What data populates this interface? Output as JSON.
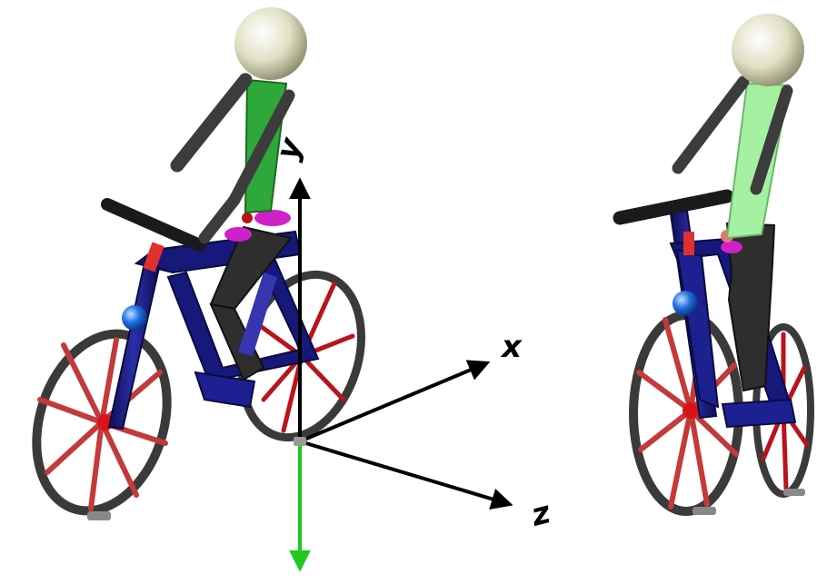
{
  "axes": {
    "labels": {
      "x": "x",
      "y": "y",
      "z": "z"
    }
  },
  "colors": {
    "frame": "#16187a",
    "frame_light": "#2b2fa8",
    "tire": "#3a3a3a",
    "spoke": "#b8141a",
    "hub": "#d8141a",
    "handlebar": "#1a1a1a",
    "head": "#e0e0c4",
    "torso_left": "#2ea83a",
    "torso_right": "#a6f0a2",
    "limb": "#3c3c3c",
    "joint_blue": "#1f6fe0",
    "joint_magenta": "#d020c8",
    "joint_red": "#e02020",
    "gravity_axis": "#1ec81e",
    "axis": "#000000"
  },
  "views": {
    "left": "perspective-view",
    "right": "front-view"
  }
}
